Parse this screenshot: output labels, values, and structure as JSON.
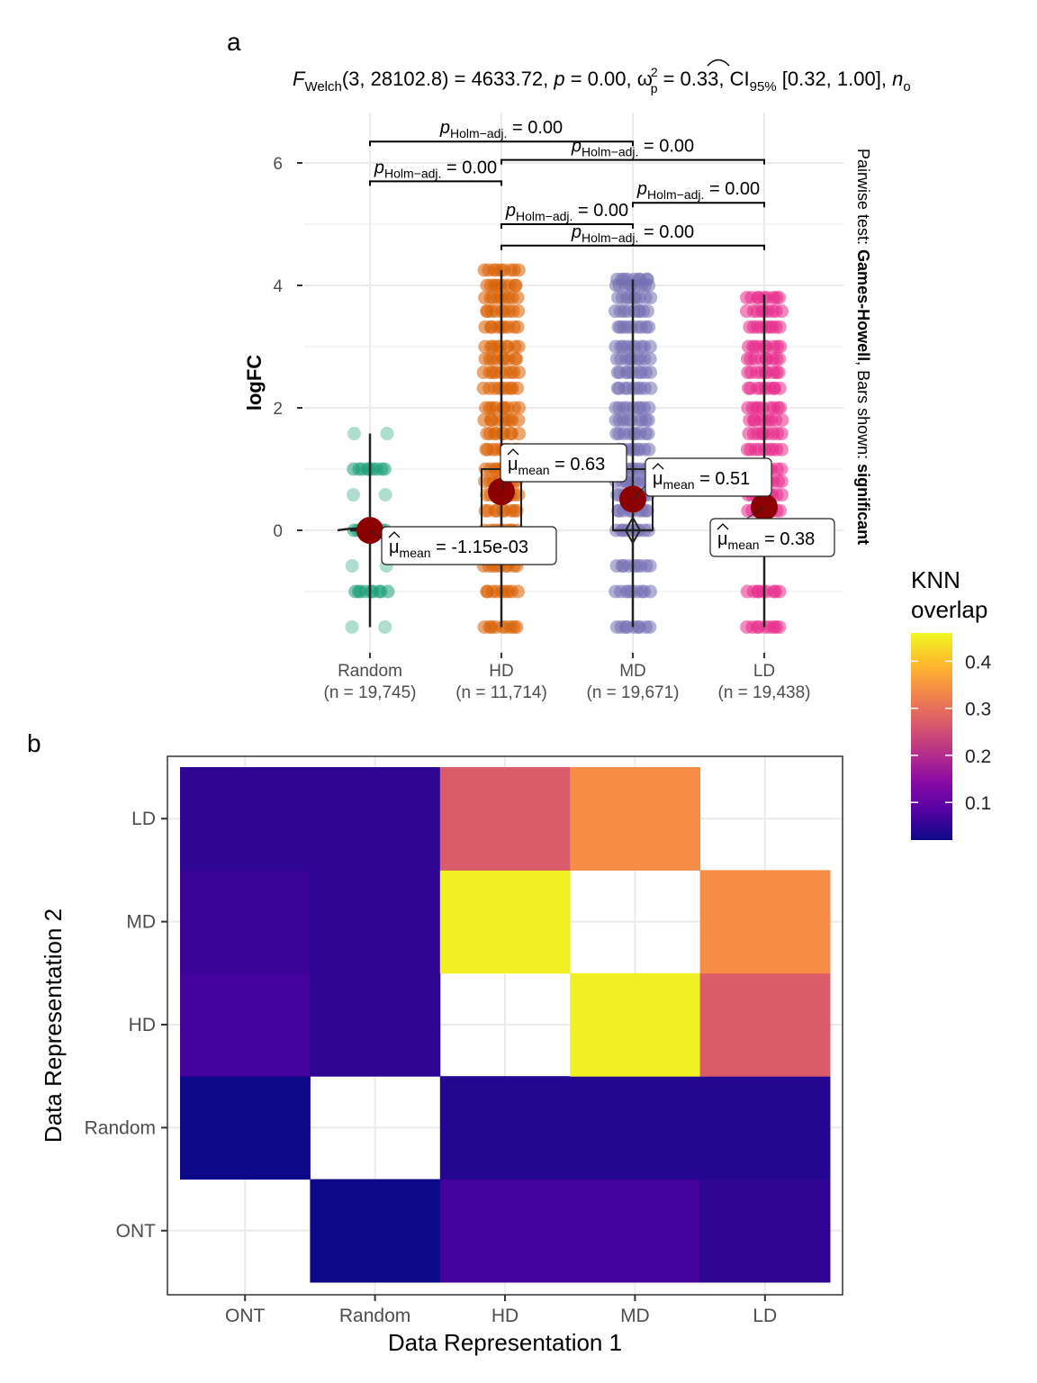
{
  "panel_labels": {
    "a": "a",
    "b": "b"
  },
  "stat_title": {
    "F": "F",
    "Welch": "Welch",
    "args": "(3, 28102.8) = 4633.72, ",
    "p": "p",
    "p_val": " = 0.00, ",
    "omega": "ω",
    "omega_sup": "2",
    "omega_sub": "p",
    "omega_val": " = 0.33, CI",
    "ci_sub": "95%",
    "ci_val": " [0.32, 1.00], ",
    "n": "n",
    "n_sub": "o"
  },
  "side_text": {
    "part1": "Pairwise test: ",
    "part2": "Games-Howell",
    "part3": ", Bars shown: ",
    "part4": "significant"
  },
  "colors": {
    "Random": "#1B9E77",
    "HD": "#D95F02",
    "MD": "#7570B3",
    "LD": "#E7298A",
    "mean_point": "#8B0000",
    "grid": "#EBEBEB",
    "na": "#FFFFFF"
  },
  "chart_data": [
    {
      "type": "scatter",
      "ylabel": "logFC",
      "xlabel": "",
      "ylim": [
        -1.7,
        6.6
      ],
      "yticks": [
        0,
        2,
        4,
        6
      ],
      "categories": [
        "Random",
        "HD",
        "MD",
        "LD"
      ],
      "category_labels": [
        [
          "Random",
          "(n = 19,745)"
        ],
        [
          "HD",
          "(n = 11,714)"
        ],
        [
          "MD",
          "(n = 19,671)"
        ],
        [
          "LD",
          "(n = 19,438)"
        ]
      ],
      "means": [
        -0.00115,
        0.63,
        0.51,
        0.38
      ],
      "mean_labels": [
        "= -1.15e-03",
        "= 0.63",
        "= 0.51",
        "= 0.38"
      ],
      "mean_symbol": "μ",
      "mean_sub": "mean",
      "ranges": [
        [
          -1.58,
          1.58
        ],
        [
          -1.58,
          4.25
        ],
        [
          -1.58,
          4.1
        ],
        [
          -1.58,
          3.85
        ]
      ],
      "boxes": [
        [
          0,
          0
        ],
        [
          0,
          1.0
        ],
        [
          0,
          1.0
        ],
        [
          0,
          0
        ]
      ],
      "medians": [
        0,
        0,
        0,
        0
      ],
      "point_values": [
        [
          -1.58,
          -1.0,
          -0.58,
          0.0,
          0.58,
          1.0,
          1.58
        ],
        [
          -1.58,
          -1.0,
          -0.58,
          0.0,
          0.32,
          0.58,
          0.8,
          1.0,
          1.32,
          1.58,
          1.8,
          2.0,
          2.32,
          2.58,
          2.8,
          3.0,
          3.32,
          3.58,
          3.8,
          4.0,
          4.25
        ],
        [
          -1.58,
          -1.0,
          -0.58,
          0.0,
          0.32,
          0.58,
          0.8,
          1.0,
          1.32,
          1.58,
          1.8,
          2.0,
          2.32,
          2.58,
          2.8,
          3.0,
          3.32,
          3.58,
          3.8,
          4.0,
          4.1
        ],
        [
          -1.58,
          -1.0,
          0.0,
          0.32,
          0.58,
          0.8,
          1.0,
          1.32,
          1.58,
          1.8,
          2.0,
          2.32,
          2.58,
          2.8,
          3.0,
          3.32,
          3.58,
          3.8
        ]
      ],
      "pairwise": [
        {
          "groups": [
            "Random",
            "HD"
          ],
          "y": 5.7,
          "label": "= 0.00"
        },
        {
          "groups": [
            "HD",
            "MD"
          ],
          "y": 5.0,
          "label": "= 0.00"
        },
        {
          "groups": [
            "HD",
            "LD"
          ],
          "y": 4.65,
          "label": "= 0.00"
        },
        {
          "groups": [
            "MD",
            "LD"
          ],
          "y": 5.35,
          "label": "= 0.00"
        },
        {
          "groups": [
            "Random",
            "MD"
          ],
          "y": 6.35,
          "label": "= 0.00"
        },
        {
          "groups": [
            "HD",
            "LD"
          ],
          "y": 6.05,
          "label": "= 0.00"
        }
      ],
      "pairwise_p": "p",
      "pairwise_sub": "Holm−adj."
    },
    {
      "type": "heatmap",
      "xlabel": "Data Representation 1",
      "ylabel": "Data Representation 2",
      "x_categories": [
        "ONT",
        "Random",
        "HD",
        "MD",
        "LD"
      ],
      "y_categories": [
        "ONT",
        "Random",
        "HD",
        "MD",
        "LD"
      ],
      "values": [
        [
          null,
          0.02,
          0.07,
          0.07,
          0.05
        ],
        [
          0.02,
          null,
          0.04,
          0.04,
          0.04
        ],
        [
          0.07,
          0.05,
          null,
          0.45,
          0.27
        ],
        [
          0.06,
          0.05,
          0.45,
          null,
          0.34
        ],
        [
          0.05,
          0.05,
          0.27,
          0.34,
          null
        ]
      ],
      "legend": {
        "title_line1": "KNN",
        "title_line2": "overlap",
        "min": 0.02,
        "max": 0.46,
        "ticks": [
          0.1,
          0.2,
          0.3,
          0.4
        ],
        "tick_labels": [
          "0.1",
          "0.2",
          "0.3",
          "0.4"
        ]
      }
    }
  ]
}
